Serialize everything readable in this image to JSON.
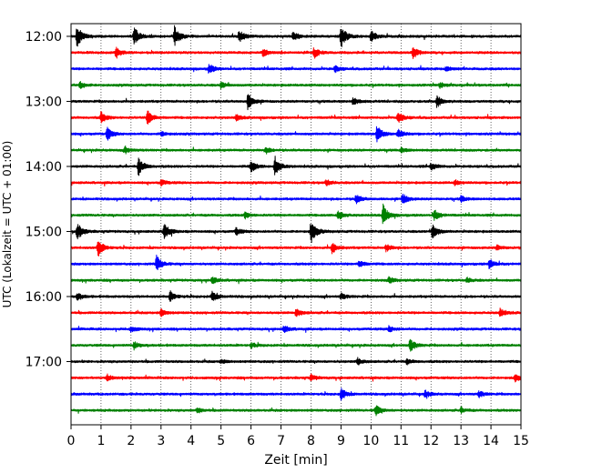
{
  "chart_data": {
    "type": "line",
    "title": "",
    "xlabel": "Zeit  [min]",
    "ylabel": "UTC (Lokalzeit = UTC + 01:00)",
    "xlim": [
      0,
      15
    ],
    "x_ticks": [
      "0",
      "1",
      "2",
      "3",
      "4",
      "5",
      "6",
      "7",
      "8",
      "9",
      "10",
      "11",
      "12",
      "13",
      "14",
      "15"
    ],
    "y_ticks": [
      "12:00",
      "13:00",
      "14:00",
      "15:00",
      "16:00",
      "17:00"
    ],
    "grid": "vertical dotted",
    "legend": "none",
    "row_minutes": 15,
    "colors": [
      "#000000",
      "#ff0000",
      "#0000ff",
      "#008000"
    ],
    "traces": [
      {
        "start": "12:00",
        "color": "#000000",
        "events": [
          [
            0.2,
            1.0
          ],
          [
            2.1,
            0.8
          ],
          [
            3.45,
            0.9
          ],
          [
            5.6,
            0.6
          ],
          [
            7.4,
            0.4
          ],
          [
            9.0,
            1.0
          ],
          [
            10.0,
            0.45
          ]
        ]
      },
      {
        "start": "12:15",
        "color": "#ff0000",
        "events": [
          [
            1.5,
            0.5
          ],
          [
            8.1,
            0.45
          ],
          [
            11.4,
            0.5
          ],
          [
            6.4,
            0.3
          ]
        ]
      },
      {
        "start": "12:30",
        "color": "#0000ff",
        "events": [
          [
            4.6,
            0.4
          ],
          [
            8.8,
            0.25
          ],
          [
            12.5,
            0.2
          ]
        ]
      },
      {
        "start": "12:45",
        "color": "#008000",
        "events": [
          [
            0.3,
            0.3
          ],
          [
            5.0,
            0.25
          ],
          [
            12.3,
            0.2
          ]
        ]
      },
      {
        "start": "13:00",
        "color": "#000000",
        "events": [
          [
            5.9,
            0.7
          ],
          [
            12.2,
            0.5
          ],
          [
            9.4,
            0.3
          ]
        ]
      },
      {
        "start": "13:15",
        "color": "#ff0000",
        "events": [
          [
            1.0,
            0.45
          ],
          [
            2.55,
            0.6
          ],
          [
            10.9,
            0.45
          ],
          [
            5.5,
            0.25
          ]
        ]
      },
      {
        "start": "13:30",
        "color": "#0000ff",
        "events": [
          [
            1.2,
            0.55
          ],
          [
            10.2,
            0.7
          ],
          [
            10.9,
            0.4
          ],
          [
            3.0,
            0.2
          ]
        ]
      },
      {
        "start": "13:45",
        "color": "#008000",
        "events": [
          [
            1.8,
            0.25
          ],
          [
            6.5,
            0.25
          ],
          [
            11.0,
            0.2
          ]
        ]
      },
      {
        "start": "14:00",
        "color": "#000000",
        "events": [
          [
            2.25,
            0.75
          ],
          [
            6.8,
            0.8
          ],
          [
            6.0,
            0.5
          ],
          [
            12.0,
            0.3
          ]
        ]
      },
      {
        "start": "14:15",
        "color": "#ff0000",
        "events": [
          [
            3.0,
            0.25
          ],
          [
            8.5,
            0.25
          ],
          [
            12.8,
            0.2
          ]
        ]
      },
      {
        "start": "14:30",
        "color": "#0000ff",
        "events": [
          [
            9.5,
            0.4
          ],
          [
            11.05,
            0.45
          ],
          [
            13.0,
            0.25
          ]
        ]
      },
      {
        "start": "14:45",
        "color": "#008000",
        "events": [
          [
            8.9,
            0.4
          ],
          [
            10.4,
            0.85
          ],
          [
            12.1,
            0.45
          ],
          [
            5.8,
            0.25
          ]
        ]
      },
      {
        "start": "15:00",
        "color": "#000000",
        "events": [
          [
            0.2,
            0.75
          ],
          [
            3.1,
            0.7
          ],
          [
            8.0,
            1.0
          ],
          [
            12.05,
            0.65
          ],
          [
            5.5,
            0.3
          ]
        ]
      },
      {
        "start": "15:15",
        "color": "#ff0000",
        "events": [
          [
            0.9,
            0.75
          ],
          [
            8.7,
            0.45
          ],
          [
            10.5,
            0.3
          ],
          [
            14.2,
            0.2
          ]
        ]
      },
      {
        "start": "15:30",
        "color": "#0000ff",
        "events": [
          [
            2.85,
            0.7
          ],
          [
            9.6,
            0.3
          ],
          [
            13.95,
            0.4
          ]
        ]
      },
      {
        "start": "15:45",
        "color": "#008000",
        "events": [
          [
            4.7,
            0.3
          ],
          [
            10.6,
            0.25
          ],
          [
            13.2,
            0.2
          ]
        ]
      },
      {
        "start": "16:00",
        "color": "#000000",
        "events": [
          [
            3.3,
            0.45
          ],
          [
            4.7,
            0.45
          ],
          [
            9.0,
            0.25
          ],
          [
            0.2,
            0.3
          ]
        ]
      },
      {
        "start": "16:15",
        "color": "#ff0000",
        "events": [
          [
            3.0,
            0.3
          ],
          [
            7.5,
            0.35
          ],
          [
            14.3,
            0.35
          ]
        ]
      },
      {
        "start": "16:30",
        "color": "#0000ff",
        "events": [
          [
            2.0,
            0.25
          ],
          [
            7.1,
            0.3
          ],
          [
            10.6,
            0.25
          ]
        ]
      },
      {
        "start": "16:45",
        "color": "#008000",
        "events": [
          [
            2.1,
            0.3
          ],
          [
            11.3,
            0.55
          ],
          [
            6.0,
            0.2
          ]
        ]
      },
      {
        "start": "17:00",
        "color": "#000000",
        "events": [
          [
            9.55,
            0.3
          ],
          [
            11.2,
            0.2
          ],
          [
            5.0,
            0.15
          ]
        ]
      },
      {
        "start": "17:15",
        "color": "#ff0000",
        "events": [
          [
            1.2,
            0.25
          ],
          [
            8.0,
            0.25
          ],
          [
            14.8,
            0.3
          ]
        ]
      },
      {
        "start": "17:30",
        "color": "#0000ff",
        "events": [
          [
            9.0,
            0.5
          ],
          [
            11.8,
            0.3
          ],
          [
            13.6,
            0.25
          ]
        ]
      },
      {
        "start": "17:45",
        "color": "#008000",
        "events": [
          [
            10.15,
            0.45
          ],
          [
            4.2,
            0.2
          ],
          [
            13.0,
            0.2
          ]
        ]
      }
    ]
  }
}
